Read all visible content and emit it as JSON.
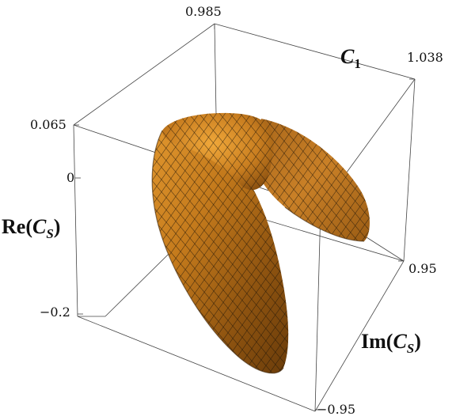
{
  "chart_data": {
    "type": "surface3d",
    "title": "",
    "axes": {
      "c1": {
        "label_main": "C",
        "label_sub": "1",
        "min": 0.985,
        "max": 1.038,
        "tick_labels": [
          "0.985",
          "1.038"
        ]
      },
      "re": {
        "label_main": "Re(",
        "label_var": "C",
        "label_sub": "S",
        "label_close": ")",
        "min": -0.2,
        "max": 0.065,
        "tick_labels": [
          "0.065",
          "0",
          "−0.2"
        ]
      },
      "im": {
        "label_main": "Im(",
        "label_var": "C",
        "label_sub": "S",
        "label_close": ")",
        "min": -0.95,
        "max": 0.95,
        "tick_labels": [
          "0.95",
          "−0.95"
        ]
      }
    },
    "surface": {
      "shape": "curved horseshoe shell",
      "color": "#c47a1c",
      "mesh_color": "#1a1208",
      "mesh": true
    },
    "grid": false
  }
}
